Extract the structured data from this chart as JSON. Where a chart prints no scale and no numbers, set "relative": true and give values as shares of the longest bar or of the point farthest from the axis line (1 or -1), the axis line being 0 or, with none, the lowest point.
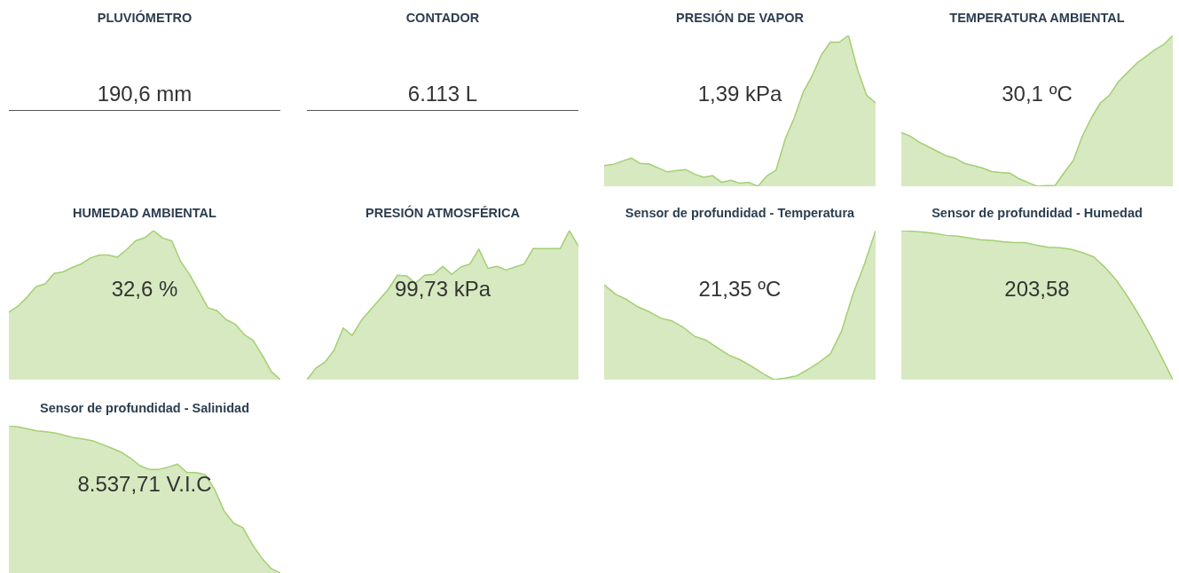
{
  "chart_data": [
    {
      "type": "other",
      "title": "PLUVIÓMETRO",
      "annotations": [
        "190,6 mm"
      ]
    },
    {
      "type": "other",
      "title": "CONTADOR",
      "annotations": [
        "6.113 L"
      ]
    },
    {
      "type": "area",
      "title": "PRESIÓN DE VAPOR",
      "annotations": [
        "1,39 kPa"
      ],
      "relative": true,
      "categories": [
        null,
        null,
        null,
        null,
        null,
        null,
        null,
        null,
        null,
        null,
        null,
        null,
        null,
        null,
        null,
        null,
        null,
        null,
        null,
        null,
        null,
        null,
        null,
        null,
        null,
        null,
        null,
        null,
        null,
        null,
        null
      ],
      "color": "#a4cf73",
      "values": [
        0.137,
        0.145,
        0.167,
        0.187,
        0.151,
        0.147,
        0.121,
        0.095,
        0.105,
        0.111,
        0.08,
        0.06,
        0.07,
        0.026,
        0.04,
        0.02,
        0.026,
        0,
        0.07,
        0.107,
        0.312,
        0.453,
        0.624,
        0.734,
        0.871,
        0.956,
        0.956,
        1,
        0.775,
        0.604,
        0.553
      ]
    },
    {
      "type": "area",
      "title": "TEMPERATURA AMBIENTAL",
      "annotations": [
        "30,1 ºC"
      ],
      "relative": true,
      "categories": [
        null,
        null,
        null,
        null,
        null,
        null,
        null,
        null,
        null,
        null,
        null,
        null,
        null,
        null,
        null,
        null,
        null,
        null,
        null,
        null,
        null,
        null,
        null,
        null,
        null,
        null,
        null,
        null,
        null,
        null,
        null
      ],
      "color": "#a4cf73",
      "values": [
        0.356,
        0.332,
        0.292,
        0.262,
        0.231,
        0.201,
        0.185,
        0.151,
        0.137,
        0.121,
        0.097,
        0.091,
        0.087,
        0.05,
        0.026,
        0,
        0.004,
        0.006,
        0.091,
        0.171,
        0.332,
        0.453,
        0.553,
        0.604,
        0.694,
        0.755,
        0.815,
        0.859,
        0.905,
        0.94,
        1
      ]
    },
    {
      "type": "area",
      "title": "HUMEDAD AMBIENTAL",
      "annotations": [
        "32,6 %"
      ],
      "relative": true,
      "categories": [
        null,
        null,
        null,
        null,
        null,
        null,
        null,
        null,
        null,
        null,
        null,
        null,
        null,
        null,
        null,
        null,
        null,
        null,
        null,
        null,
        null,
        null,
        null,
        null,
        null,
        null,
        null,
        null,
        null,
        null,
        null
      ],
      "color": "#a4cf73",
      "values": [
        0.453,
        0.493,
        0.553,
        0.623,
        0.643,
        0.713,
        0.723,
        0.753,
        0.777,
        0.816,
        0.836,
        0.836,
        0.822,
        0.872,
        0.932,
        0.952,
        1,
        0.95,
        0.932,
        0.792,
        0.703,
        0.593,
        0.483,
        0.463,
        0.403,
        0.373,
        0.303,
        0.263,
        0.164,
        0.054,
        0
      ]
    },
    {
      "type": "area",
      "title": "PRESIÓN ATMOSFÉRICA",
      "annotations": [
        "99,73 kPa"
      ],
      "relative": true,
      "categories": [
        null,
        null,
        null,
        null,
        null,
        null,
        null,
        null,
        null,
        null,
        null,
        null,
        null,
        null,
        null,
        null,
        null,
        null,
        null,
        null,
        null,
        null,
        null,
        null,
        null,
        null,
        null,
        null,
        null,
        null,
        null
      ],
      "color": "#a4cf73",
      "values": [
        0,
        0.078,
        0.118,
        0.198,
        0.347,
        0.297,
        0.397,
        0.467,
        0.537,
        0.607,
        0.701,
        0.697,
        0.647,
        0.701,
        0.707,
        0.76,
        0.707,
        0.756,
        0.776,
        0.876,
        0.747,
        0.76,
        0.736,
        0.756,
        0.776,
        0.88,
        0.88,
        0.88,
        0.88,
        1,
        0.896
      ]
    },
    {
      "type": "area",
      "title": "Sensor de profundidad - Temperatura",
      "annotations": [
        "21,35 ºC"
      ],
      "relative": true,
      "categories": [
        null,
        null,
        null,
        null,
        null,
        null,
        null,
        null,
        null,
        null,
        null,
        null,
        null,
        null,
        null,
        null,
        null,
        null,
        null,
        null,
        null,
        null,
        null,
        null,
        null
      ],
      "color": "#a4cf73",
      "values": [
        0.636,
        0.574,
        0.537,
        0.488,
        0.455,
        0.413,
        0.394,
        0.351,
        0.29,
        0.265,
        0.215,
        0.166,
        0.134,
        0.092,
        0.042,
        0,
        0.01,
        0.025,
        0.067,
        0.116,
        0.173,
        0.327,
        0.574,
        0.772,
        1
      ]
    },
    {
      "type": "area",
      "title": "Sensor de profundidad - Humedad",
      "annotations": [
        "203,58"
      ],
      "relative": true,
      "categories": [
        null,
        null,
        null,
        null,
        null,
        null,
        null,
        null,
        null,
        null,
        null,
        null,
        null,
        null,
        null,
        null,
        null,
        null,
        null,
        null,
        null,
        null,
        null,
        null,
        null
      ],
      "color": "#a4cf73",
      "values": [
        1,
        0.995,
        0.99,
        0.98,
        0.968,
        0.963,
        0.951,
        0.939,
        0.934,
        0.926,
        0.919,
        0.919,
        0.902,
        0.889,
        0.885,
        0.875,
        0.853,
        0.824,
        0.754,
        0.668,
        0.558,
        0.435,
        0.3,
        0.152,
        0
      ]
    },
    {
      "type": "area",
      "title": "Sensor de profundidad - Salinidad",
      "annotations": [
        "8.537,71 V.I.C"
      ],
      "relative": true,
      "categories": [
        null,
        null,
        null,
        null,
        null,
        null,
        null,
        null,
        null,
        null,
        null,
        null,
        null,
        null,
        null,
        null,
        null,
        null,
        null,
        null,
        null,
        null,
        null,
        null,
        null,
        null,
        null,
        null,
        null,
        null
      ],
      "color": "#a4cf73",
      "values": [
        1,
        0.992,
        0.979,
        0.965,
        0.959,
        0.951,
        0.934,
        0.918,
        0.91,
        0.897,
        0.873,
        0.848,
        0.821,
        0.78,
        0.729,
        0.704,
        0.704,
        0.719,
        0.739,
        0.684,
        0.682,
        0.667,
        0.565,
        0.421,
        0.339,
        0.308,
        0.195,
        0.103,
        0.031,
        0
      ]
    }
  ]
}
